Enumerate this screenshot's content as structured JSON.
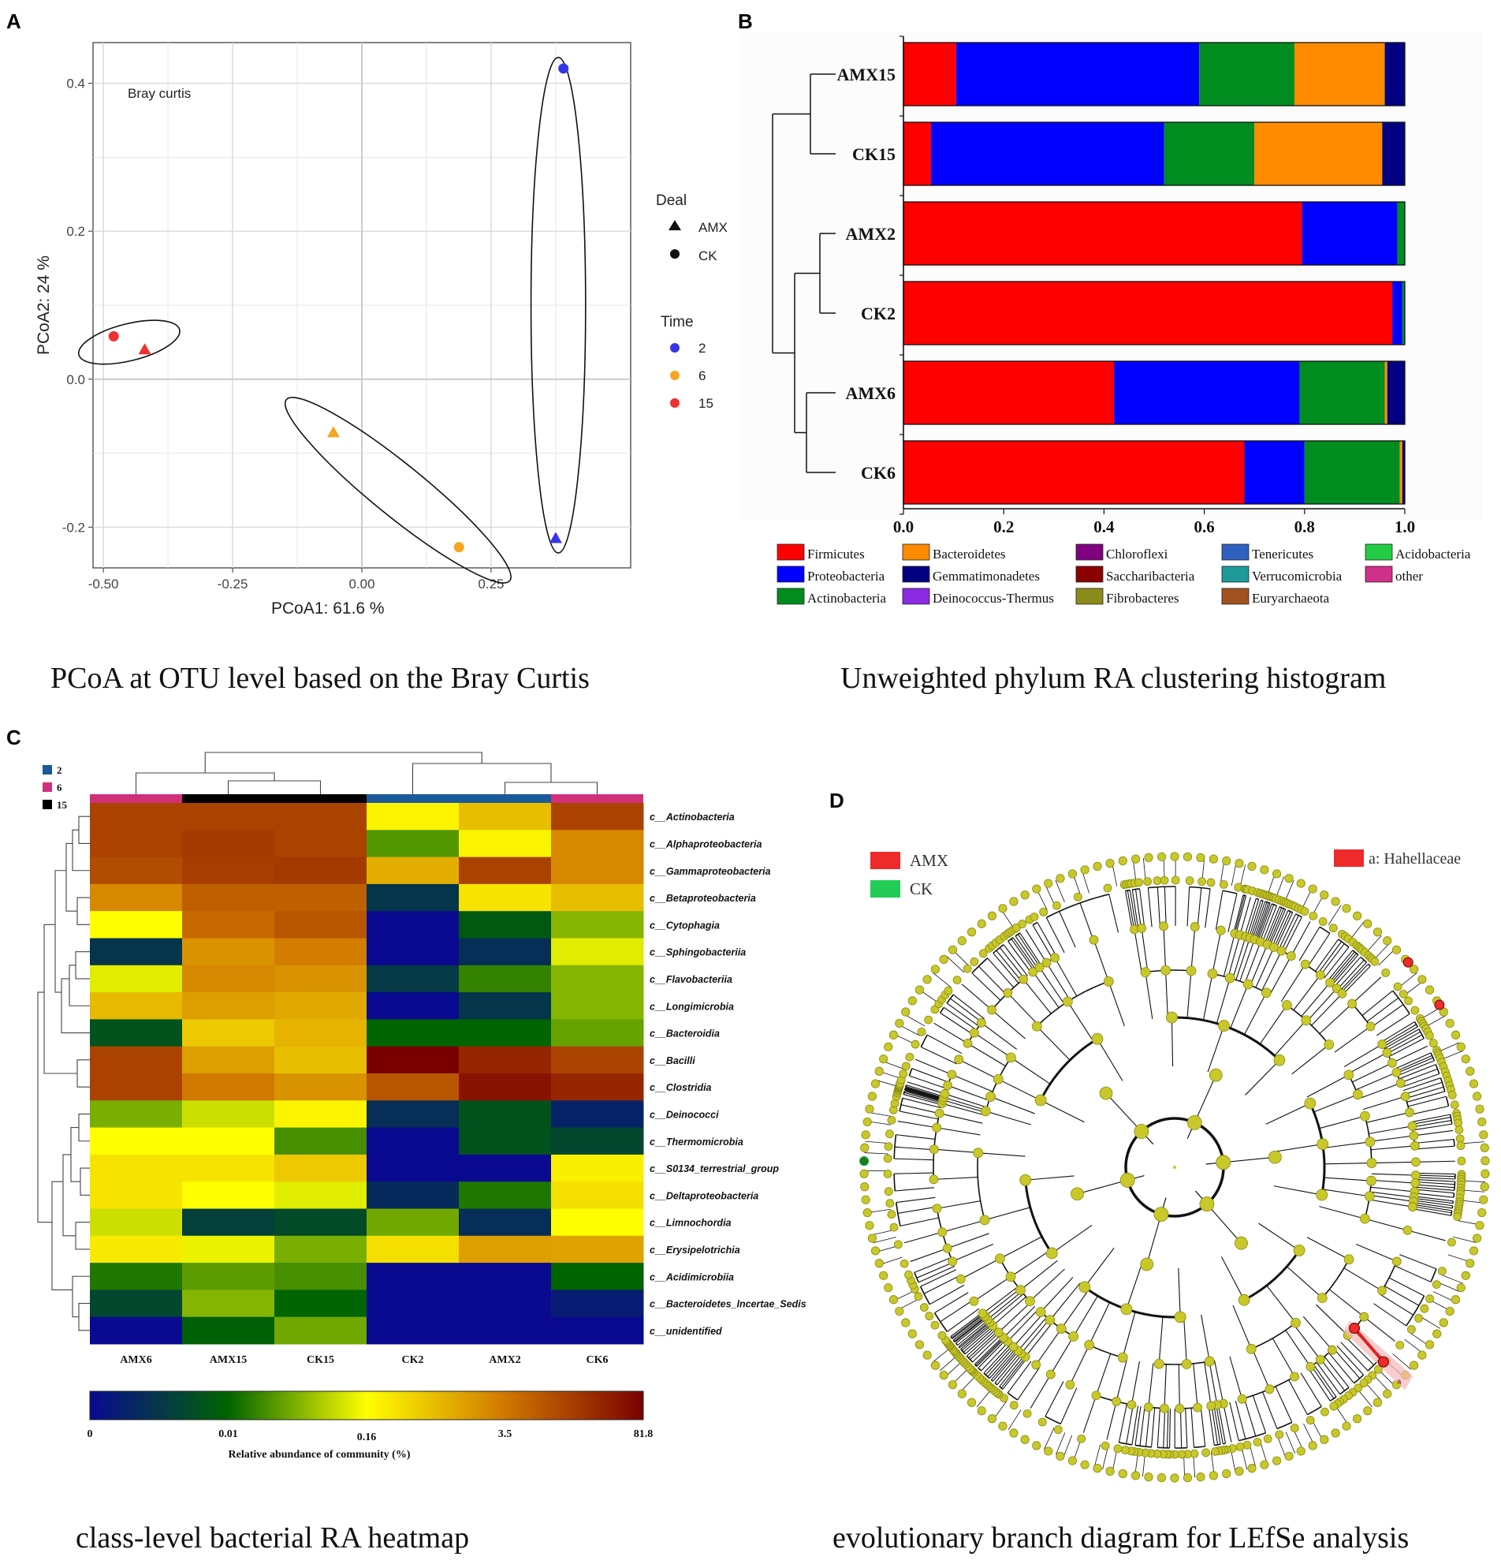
{
  "panels": {
    "a": {
      "letter": "A",
      "caption": "PCoA at OTU level based on the Bray Curtis"
    },
    "b": {
      "letter": "B",
      "caption": "Unweighted phylum RA clustering histogram"
    },
    "c": {
      "letter": "C",
      "caption": "class-level bacterial RA heatmap"
    },
    "d": {
      "letter": "D",
      "caption": "evolutionary branch diagram for LEfSe analysis"
    }
  },
  "chart_data": [
    {
      "type": "scatter",
      "title": "Bray curtis",
      "xlabel": "PCoA1:  61.6 %",
      "ylabel": "PCoA2:  24 %",
      "xlim": [
        -0.52,
        0.52
      ],
      "ylim": [
        -0.255,
        0.455
      ],
      "xticks": [
        -0.5,
        -0.25,
        0.0,
        0.25
      ],
      "xtick_labels": [
        "-0.50",
        "-0.25",
        "0.00",
        "0.25"
      ],
      "yticks": [
        -0.2,
        0.0,
        0.2,
        0.4
      ],
      "ytick_labels": [
        "-0.2",
        "0.0",
        "0.2",
        "0.4"
      ],
      "legend": {
        "deal_title": "Deal",
        "deal": [
          {
            "label": "AMX",
            "shape": "triangle"
          },
          {
            "label": "CK",
            "shape": "circle"
          }
        ],
        "time_title": "Time",
        "time": [
          {
            "label": "2",
            "color": "#3535e8"
          },
          {
            "label": "6",
            "color": "#f5a623"
          },
          {
            "label": "15",
            "color": "#ee3030"
          }
        ]
      },
      "points": [
        {
          "x": 0.39,
          "y": 0.42,
          "deal": "CK",
          "time": "2"
        },
        {
          "x": 0.375,
          "y": -0.215,
          "deal": "AMX",
          "time": "2"
        },
        {
          "x": -0.055,
          "y": -0.072,
          "deal": "AMX",
          "time": "6"
        },
        {
          "x": 0.188,
          "y": -0.227,
          "deal": "CK",
          "time": "6"
        },
        {
          "x": -0.48,
          "y": 0.058,
          "deal": "CK",
          "time": "15"
        },
        {
          "x": -0.42,
          "y": 0.04,
          "deal": "AMX",
          "time": "15"
        }
      ],
      "ellipses": [
        {
          "time": "2",
          "cx": 0.38,
          "cy": 0.1,
          "rx": 0.045,
          "ry": 0.34,
          "angle": 0
        },
        {
          "time": "6",
          "cx": 0.07,
          "cy": -0.15,
          "rx": 0.18,
          "ry": 0.035,
          "angle": 39
        },
        {
          "time": "15",
          "cx": -0.45,
          "cy": 0.05,
          "rx": 0.065,
          "ry": 0.025,
          "angle": -14
        }
      ]
    },
    {
      "type": "bar",
      "stacked": true,
      "orientation": "horizontal",
      "categories": [
        "AMX15",
        "CK15",
        "AMX2",
        "CK2",
        "AMX6",
        "CK6"
      ],
      "xlim": [
        0,
        1
      ],
      "xticks": [
        0.0,
        0.2,
        0.4,
        0.6,
        0.8,
        1.0
      ],
      "xtick_labels": [
        "0.0",
        "0.2",
        "0.4",
        "0.6",
        "0.8",
        "1.0"
      ],
      "series": [
        {
          "name": "Firmicutes",
          "color": "#ff0000",
          "values": [
            0.105,
            0.055,
            0.795,
            0.975,
            0.42,
            0.68
          ]
        },
        {
          "name": "Proteobacteria",
          "color": "#0000ff",
          "values": [
            0.485,
            0.465,
            0.19,
            0.02,
            0.37,
            0.12
          ]
        },
        {
          "name": "Actinobacteria",
          "color": "#008c1e",
          "values": [
            0.19,
            0.18,
            0.015,
            0.005,
            0.17,
            0.19
          ]
        },
        {
          "name": "Bacteroidetes",
          "color": "#ff8c00",
          "values": [
            0.18,
            0.255,
            0,
            0,
            0.005,
            0.005
          ]
        },
        {
          "name": "Gemmatimonadetes",
          "color": "#000080",
          "values": [
            0.04,
            0.045,
            0,
            0,
            0.035,
            0.005
          ]
        },
        {
          "name": "Deinococcus-Thermus",
          "color": "#8a2be2",
          "values": [
            0,
            0,
            0,
            0,
            0,
            0
          ]
        },
        {
          "name": "Chloroflexi",
          "color": "#800080",
          "values": [
            0,
            0,
            0,
            0,
            0,
            0
          ]
        },
        {
          "name": "Saccharibacteria",
          "color": "#8b0000",
          "values": [
            0,
            0,
            0,
            0,
            0,
            0
          ]
        },
        {
          "name": "Fibrobacteres",
          "color": "#8b8b1a",
          "values": [
            0,
            0,
            0,
            0,
            0,
            0
          ]
        },
        {
          "name": "Tenericutes",
          "color": "#3060c0",
          "values": [
            0,
            0,
            0,
            0,
            0,
            0
          ]
        },
        {
          "name": "Verrucomicrobia",
          "color": "#1e9a9a",
          "values": [
            0,
            0,
            0,
            0,
            0,
            0
          ]
        },
        {
          "name": "Euryarchaeota",
          "color": "#a0521e",
          "values": [
            0,
            0,
            0,
            0,
            0,
            0
          ]
        },
        {
          "name": "Acidobacteria",
          "color": "#22cc44",
          "values": [
            0,
            0,
            0,
            0,
            0,
            0
          ]
        },
        {
          "name": "other",
          "color": "#d0308a",
          "values": [
            0,
            0,
            0,
            0,
            0,
            0
          ]
        }
      ],
      "legend_labels": [
        "Firmicutes",
        "Bacteroidetes",
        "Chloroflexi",
        "Tenericutes",
        "Acidobacteria",
        "Proteobacteria",
        "Gemmatimonadetes",
        "Saccharibacteria",
        "Verrucomicrobia",
        "other",
        "Actinobacteria",
        "Deinococcus-Thermus",
        "Fibrobacteres",
        "Euryarchaeota"
      ]
    },
    {
      "type": "heatmap",
      "columns": [
        "AMX6",
        "AMX15",
        "CK15",
        "CK2",
        "AMX2",
        "CK6"
      ],
      "column_groups": [
        "6",
        "15",
        "15",
        "2",
        "2",
        "6"
      ],
      "group_legend": [
        {
          "label": "2",
          "color": "#1a5a9a"
        },
        {
          "label": "6",
          "color": "#d0307a"
        },
        {
          "label": "15",
          "color": "#000000"
        }
      ],
      "rows": [
        "c__Actinobacteria",
        "c__Alphaproteobacteria",
        "c__Gammaproteobacteria",
        "c__Betaproteobacteria",
        "c__Cytophagia",
        "c__Sphingobacteriia",
        "c__Flavobacteriia",
        "c__Longimicrobia",
        "c__Bacteroidia",
        "c__Bacilli",
        "c__Clostridia",
        "c__Deinococci",
        "c__Thermomicrobia",
        "c__S0134_terrestrial_group",
        "c__Deltaproteobacteria",
        "c__Limnochordia",
        "c__Erysipelotrichia",
        "c__Acidimicrobiia",
        "c__Bacteroidetes_Incertae_Sedis",
        "c__unidentified"
      ],
      "values_level": [
        [
          0.86,
          0.86,
          0.86,
          0.52,
          0.62,
          0.86
        ],
        [
          0.86,
          0.88,
          0.86,
          0.33,
          0.52,
          0.72
        ],
        [
          0.84,
          0.87,
          0.88,
          0.65,
          0.86,
          0.72
        ],
        [
          0.72,
          0.8,
          0.8,
          0.12,
          0.55,
          0.62
        ],
        [
          0.5,
          0.78,
          0.82,
          0.0,
          0.22,
          0.38
        ],
        [
          0.12,
          0.7,
          0.74,
          0.0,
          0.1,
          0.47
        ],
        [
          0.47,
          0.72,
          0.7,
          0.13,
          0.3,
          0.38
        ],
        [
          0.63,
          0.68,
          0.66,
          0.0,
          0.12,
          0.38
        ],
        [
          0.2,
          0.6,
          0.64,
          0.25,
          0.25,
          0.35
        ],
        [
          0.86,
          0.68,
          0.62,
          1.0,
          0.92,
          0.86
        ],
        [
          0.86,
          0.75,
          0.7,
          0.82,
          0.96,
          0.92
        ],
        [
          0.37,
          0.45,
          0.52,
          0.1,
          0.2,
          0.07
        ],
        [
          0.5,
          0.5,
          0.32,
          0.0,
          0.2,
          0.17
        ],
        [
          0.55,
          0.55,
          0.6,
          0.0,
          0.0,
          0.53
        ],
        [
          0.55,
          0.5,
          0.47,
          0.09,
          0.28,
          0.56
        ],
        [
          0.45,
          0.15,
          0.18,
          0.36,
          0.1,
          0.5
        ],
        [
          0.54,
          0.48,
          0.37,
          0.56,
          0.68,
          0.67
        ],
        [
          0.28,
          0.34,
          0.32,
          0.0,
          0.0,
          0.25
        ],
        [
          0.17,
          0.38,
          0.25,
          0.0,
          0.0,
          0.05
        ],
        [
          0.0,
          0.24,
          0.36,
          0.0,
          0.0,
          0.0
        ]
      ],
      "colorbar": {
        "label": "Relative abundance of community (%)",
        "ticks": [
          "0",
          "0.01",
          "0.16",
          "3.5",
          "81.8"
        ],
        "tick_positions": [
          0.0,
          0.25,
          0.5,
          0.75,
          1.0
        ],
        "colors": [
          "#0a0a90",
          "#006400",
          "#ffff00",
          "#d07800",
          "#7a0000"
        ]
      }
    },
    {
      "type": "other",
      "subtype": "cladogram",
      "legend": [
        {
          "label": "AMX",
          "color": "#ee2a2a"
        },
        {
          "label": "CK",
          "color": "#22cc55"
        }
      ],
      "highlight_label": "a: Hahellaceae",
      "marker": "a",
      "node_color": "#c8c82a",
      "node_stroke": "#8a8a10",
      "amx_color": "#ee2a2a",
      "ck_color": "#1e7a1e"
    }
  ]
}
